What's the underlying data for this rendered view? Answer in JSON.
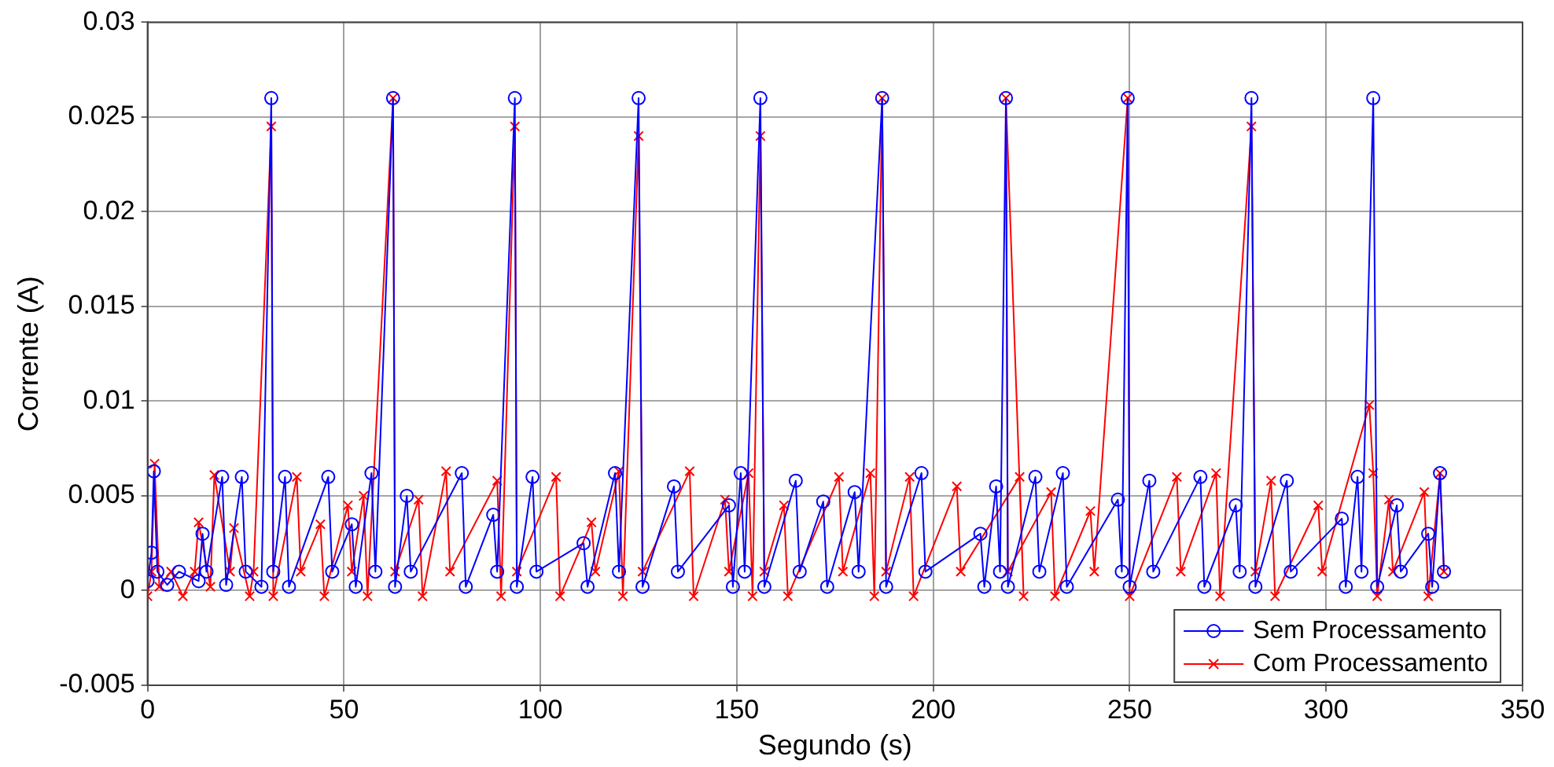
{
  "chart_data": {
    "type": "line",
    "xlabel": "Segundo (s)",
    "ylabel": "Corrente (A)",
    "xlim": [
      0,
      350
    ],
    "xticks": [
      0,
      50,
      100,
      150,
      200,
      250,
      300,
      350
    ],
    "ylim": [
      -0.005,
      0.03
    ],
    "yticks": [
      -0.005,
      0,
      0.005,
      0.01,
      0.015,
      0.02,
      0.025,
      0.03
    ],
    "grid": true,
    "legend": "bottom right",
    "line_style": "solid",
    "series": [
      {
        "name": "Sem Processamento",
        "color": "#0000ff",
        "marker": "circle",
        "x": [
          0,
          1,
          1.6,
          2.5,
          5,
          8,
          13,
          14,
          15,
          19,
          20,
          24,
          25,
          29,
          31.5,
          32,
          35,
          36,
          46,
          47,
          52,
          53,
          57,
          58,
          62.5,
          63,
          66,
          67,
          80,
          81,
          88,
          89,
          93.5,
          94,
          98,
          99,
          111,
          112,
          119,
          120,
          125,
          126,
          134,
          135,
          148,
          149,
          151,
          152,
          156,
          157,
          165,
          166,
          172,
          173,
          180,
          181,
          187,
          188,
          197,
          198,
          212,
          213,
          216,
          217,
          218.5,
          219,
          226,
          227,
          233,
          234,
          247,
          248,
          249.5,
          250,
          255,
          256,
          268,
          269,
          277,
          278,
          281,
          282,
          290,
          291,
          304,
          305,
          308,
          309,
          312,
          313,
          318,
          319,
          326,
          327,
          329,
          330
        ],
        "values": [
          0.0005,
          0.002,
          0.0063,
          0.001,
          0.0003,
          0.001,
          0.0005,
          0.003,
          0.001,
          0.006,
          0.0003,
          0.006,
          0.001,
          0.0002,
          0.026,
          0.001,
          0.006,
          0.0002,
          0.006,
          0.001,
          0.0035,
          0.0002,
          0.0062,
          0.001,
          0.026,
          0.0002,
          0.005,
          0.001,
          0.0062,
          0.0002,
          0.004,
          0.001,
          0.026,
          0.0002,
          0.006,
          0.001,
          0.0025,
          0.0002,
          0.0062,
          0.001,
          0.026,
          0.0002,
          0.0055,
          0.001,
          0.0045,
          0.0002,
          0.0062,
          0.001,
          0.026,
          0.0002,
          0.0058,
          0.001,
          0.0047,
          0.0002,
          0.0052,
          0.001,
          0.026,
          0.0002,
          0.0062,
          0.001,
          0.003,
          0.0002,
          0.0055,
          0.001,
          0.026,
          0.0002,
          0.006,
          0.001,
          0.0062,
          0.0002,
          0.0048,
          0.001,
          0.026,
          0.0002,
          0.0058,
          0.001,
          0.006,
          0.0002,
          0.0045,
          0.001,
          0.026,
          0.0002,
          0.0058,
          0.001,
          0.0038,
          0.0002,
          0.006,
          0.001,
          0.026,
          0.0002,
          0.0045,
          0.001,
          0.003,
          0.0002,
          0.0062,
          0.001
        ]
      },
      {
        "name": "Com Processamento",
        "color": "#ff0000",
        "marker": "cross",
        "x": [
          0,
          1,
          1.8,
          3,
          6,
          9,
          12,
          13,
          16,
          17,
          21,
          22,
          26,
          27,
          31.5,
          32,
          38,
          39,
          44,
          45,
          51,
          52,
          55,
          56,
          62.5,
          63,
          69,
          70,
          76,
          77,
          89,
          90,
          93.5,
          94,
          104,
          105,
          113,
          114,
          120,
          121,
          125,
          126,
          138,
          139,
          147,
          148,
          153,
          154,
          156,
          157,
          162,
          163,
          176,
          177,
          184,
          185,
          187,
          188,
          194,
          195,
          206,
          207,
          222,
          223,
          218.5,
          219,
          230,
          231,
          240,
          241,
          249.5,
          250,
          262,
          263,
          272,
          273,
          281,
          282,
          286,
          287,
          298,
          299,
          311,
          312,
          313,
          316,
          317,
          325,
          326,
          329,
          330
        ],
        "values": [
          -0.0003,
          0.001,
          0.0067,
          0.0002,
          0.001,
          -0.0003,
          0.001,
          0.0036,
          0.0002,
          0.0061,
          0.001,
          0.0033,
          -0.0003,
          0.001,
          0.0245,
          -0.0003,
          0.006,
          0.001,
          0.0035,
          -0.0003,
          0.0045,
          0.001,
          0.005,
          -0.0003,
          0.026,
          0.001,
          0.0048,
          -0.0003,
          0.0063,
          0.001,
          0.0058,
          -0.0003,
          0.0245,
          0.001,
          0.006,
          -0.0003,
          0.0036,
          0.001,
          0.0063,
          -0.0003,
          0.024,
          0.001,
          0.0063,
          -0.0003,
          0.0048,
          0.001,
          0.0062,
          -0.0003,
          0.024,
          0.001,
          0.0045,
          -0.0003,
          0.006,
          0.001,
          0.0062,
          -0.0003,
          0.026,
          0.001,
          0.006,
          -0.0003,
          0.0055,
          0.001,
          0.006,
          -0.0003,
          0.026,
          0.001,
          0.0052,
          -0.0003,
          0.0042,
          0.001,
          0.026,
          -0.0003,
          0.006,
          0.001,
          0.0062,
          -0.0003,
          0.0245,
          0.001,
          0.0058,
          -0.0003,
          0.0045,
          0.001,
          0.0098,
          0.0062,
          -0.0003,
          0.0048,
          0.001,
          0.0052,
          -0.0003,
          0.0062,
          0.001
        ]
      }
    ]
  }
}
